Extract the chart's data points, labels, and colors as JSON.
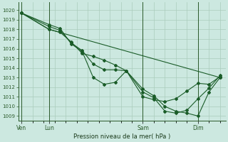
{
  "xlabel": "Pression niveau de la mer( hPa )",
  "bg_color": "#cce8e0",
  "grid_color": "#aaccbc",
  "line_color": "#1a5c28",
  "ylim": [
    1008.5,
    1020.8
  ],
  "yticks": [
    1009,
    1010,
    1011,
    1012,
    1013,
    1014,
    1015,
    1016,
    1017,
    1018,
    1019,
    1020
  ],
  "xtick_labels": [
    "Ven",
    "Lun",
    "Sam",
    "Dim"
  ],
  "xtick_positions": [
    0,
    2.5,
    11,
    16
  ],
  "vline_positions": [
    0,
    2.5,
    11,
    16
  ],
  "xlim": [
    -0.3,
    18.5
  ],
  "series": [
    {
      "x": [
        0,
        2.5,
        18
      ],
      "y": [
        1019.7,
        1018.0,
        1013.0
      ]
    },
    {
      "x": [
        0,
        2.5,
        3.5,
        4.5,
        5.5,
        6.5,
        7.5,
        8.5,
        9.5,
        11,
        12,
        13,
        14,
        15,
        16,
        17,
        18
      ],
      "y": [
        1019.7,
        1018.3,
        1017.9,
        1016.6,
        1015.8,
        1014.4,
        1013.8,
        1013.8,
        1013.7,
        1011.8,
        1011.1,
        1010.0,
        1009.5,
        1009.3,
        1009.0,
        1011.5,
        1013.0
      ]
    },
    {
      "x": [
        0,
        2.5,
        3.5,
        4.5,
        5.5,
        6.5,
        7.5,
        8.5,
        9.5,
        11,
        12,
        13,
        14,
        15,
        16,
        17,
        18
      ],
      "y": [
        1019.7,
        1018.5,
        1018.1,
        1016.5,
        1015.7,
        1013.0,
        1012.3,
        1012.5,
        1013.7,
        1011.5,
        1010.9,
        1009.5,
        1009.3,
        1009.6,
        1010.8,
        1011.9,
        1013.2
      ]
    },
    {
      "x": [
        0,
        2.5,
        3.5,
        4.5,
        5.5,
        6.5,
        7.5,
        8.5,
        9.5,
        11,
        12,
        13,
        14,
        15,
        16,
        17,
        18
      ],
      "y": [
        1019.7,
        1018.0,
        1017.7,
        1016.7,
        1015.5,
        1015.2,
        1014.8,
        1014.3,
        1013.7,
        1011.0,
        1010.7,
        1010.5,
        1010.8,
        1011.6,
        1012.4,
        1012.3,
        1013.1
      ]
    }
  ]
}
